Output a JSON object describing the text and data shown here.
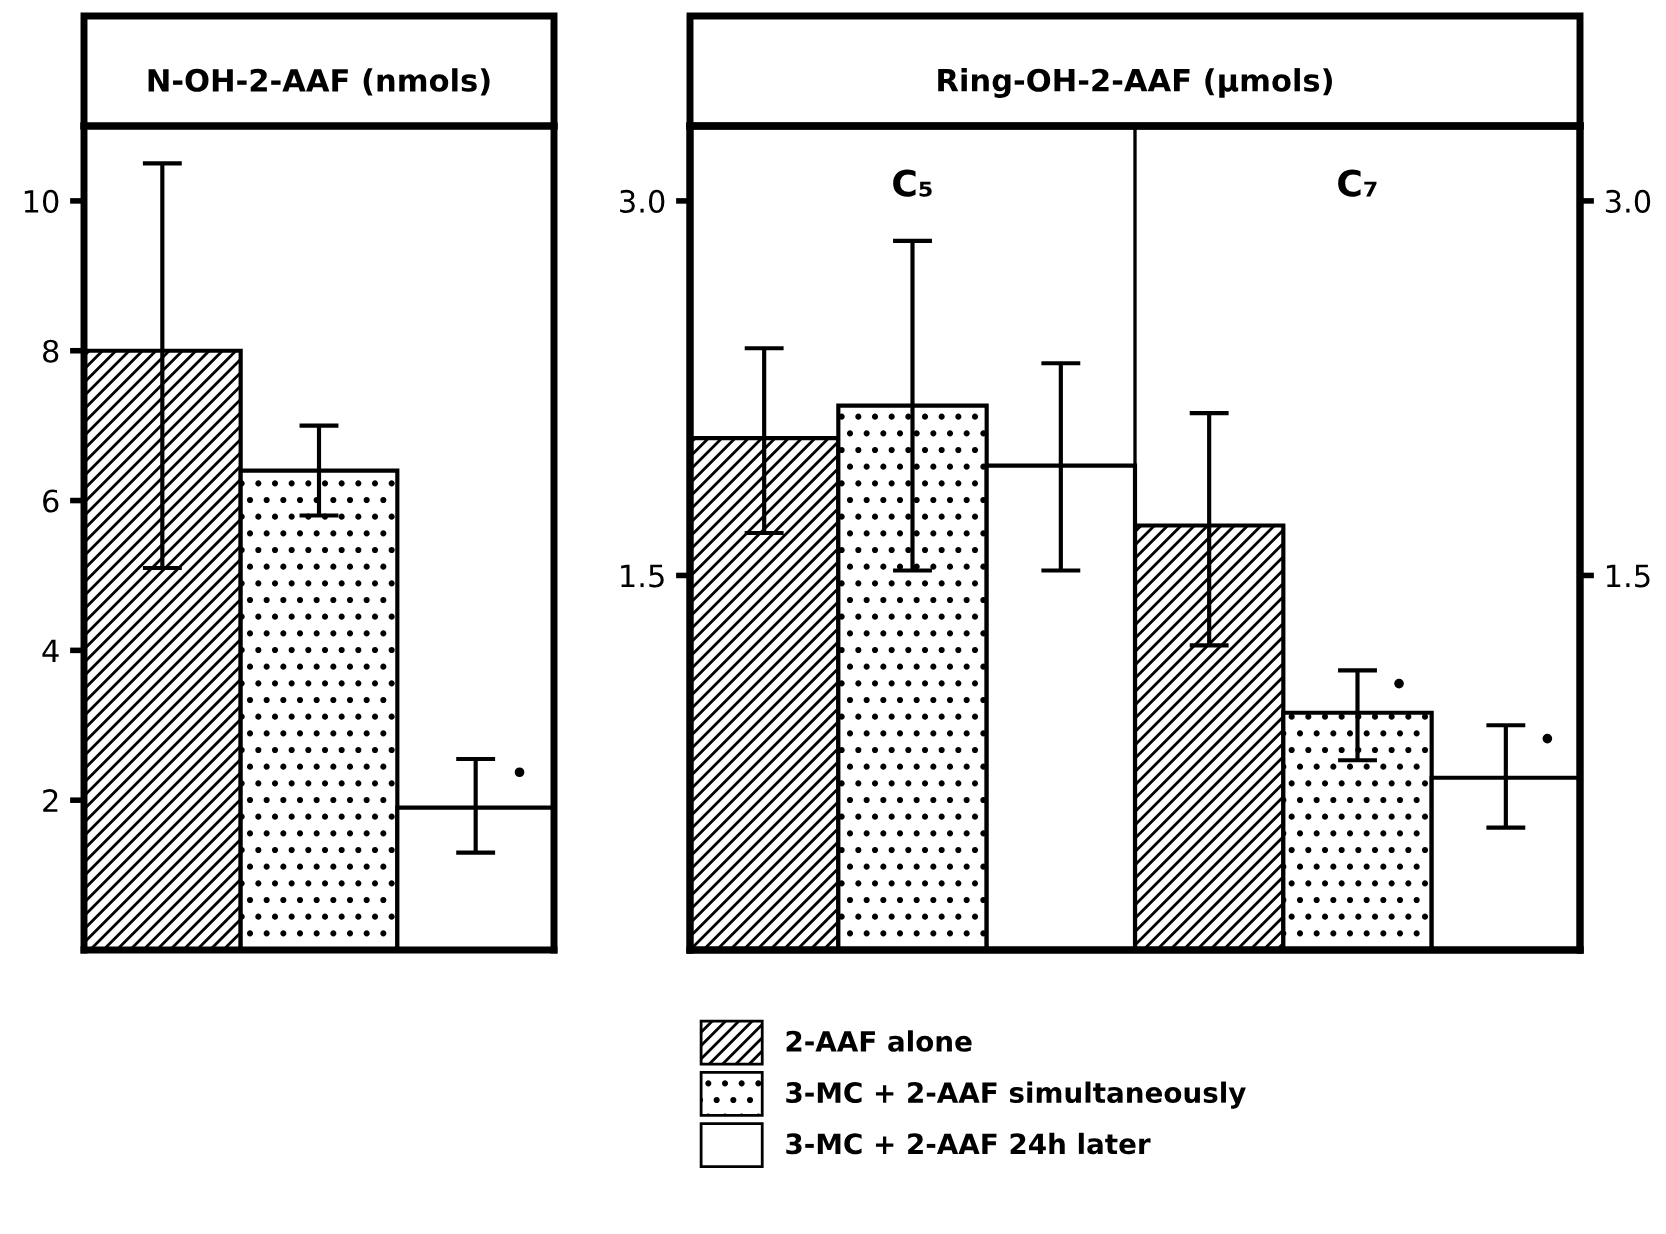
{
  "chart_data": [
    {
      "type": "bar",
      "title": "N-OH-2-AAF (nmols)",
      "categories": [
        null
      ],
      "ylim": [
        0,
        11.0
      ],
      "yticks": [
        2,
        4,
        6,
        8,
        10
      ],
      "legend": "bottom",
      "series": [
        {
          "name": "2-AAF alone",
          "color": "#000000",
          "values": [
            8.0
          ],
          "errors": [
            [
              5.1,
              10.5
            ]
          ]
        },
        {
          "name": "3-MC + 2-AAF simultaneously",
          "color": "#000000",
          "values": [
            6.4
          ],
          "errors": [
            [
              5.8,
              7.0
            ]
          ]
        },
        {
          "name": "3-MC + 2-AAF 24h later",
          "color": "#ffffff",
          "values": [
            1.9
          ],
          "errors": [
            [
              1.3,
              2.55
            ]
          ]
        }
      ],
      "annotations": [
        "•"
      ]
    },
    {
      "type": "bar",
      "title": "Ring-OH-2-AAF (µmols)",
      "categories": [
        "C₅",
        "C₇"
      ],
      "ylim": [
        0,
        3.3
      ],
      "yticks": [
        1.5,
        {
          "value": 3.0,
          "label": "3.0"
        }
      ],
      "y2lim": [
        0,
        3.3
      ],
      "y2ticks": [
        1.5,
        {
          "value": 3.0,
          "label": "3.0"
        }
      ],
      "series": [
        {
          "color": "#000000",
          "values": [
            2.05,
            1.7
          ],
          "errors": [
            [
              1.67,
              2.41
            ],
            [
              1.22,
              2.15
            ]
          ]
        },
        {
          "color": "#000000",
          "values": [
            2.18,
            0.95
          ],
          "errors": [
            [
              1.52,
              2.84
            ],
            [
              0.76,
              1.12
            ]
          ]
        },
        {
          "color": "#ffffff",
          "values": [
            1.94,
            0.69
          ],
          "errors": [
            [
              1.52,
              2.35
            ],
            [
              0.49,
              0.9
            ]
          ]
        }
      ],
      "annotations": [
        "•",
        "•"
      ]
    }
  ]
}
